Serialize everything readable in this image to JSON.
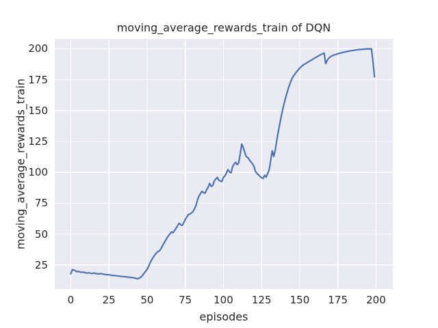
{
  "chart_data": {
    "type": "line",
    "title": "moving_average_rewards_train of DQN",
    "xlabel": "episodes",
    "ylabel": "moving_average_rewards_train",
    "x_ticks": [
      0,
      25,
      50,
      75,
      100,
      125,
      150,
      175,
      200
    ],
    "y_ticks": [
      25,
      50,
      75,
      100,
      125,
      150,
      175,
      200
    ],
    "xlim": [
      -10.5,
      211
    ],
    "ylim": [
      5.5,
      208
    ],
    "grid": true,
    "legend": false,
    "colors": {
      "line": "#4C72B0",
      "plot_bg": "#EAEAF2",
      "grid": "#FFFFFF",
      "text": "#262626",
      "figure_bg": "#FFFFFF"
    },
    "series": [
      {
        "name": "moving_average_rewards_train",
        "x_start": 0,
        "x_step": 1,
        "values": [
          17.9,
          21.2,
          20.9,
          20.2,
          19.6,
          19.8,
          19.4,
          19.0,
          19.2,
          18.9,
          18.6,
          18.4,
          18.7,
          18.3,
          18.0,
          18.5,
          18.2,
          17.9,
          17.7,
          17.9,
          18.0,
          17.6,
          17.4,
          17.2,
          17.1,
          17.0,
          16.8,
          16.7,
          16.5,
          16.4,
          16.2,
          16.1,
          15.9,
          15.8,
          15.6,
          15.5,
          15.4,
          15.2,
          15.1,
          14.9,
          14.8,
          14.6,
          14.4,
          14.1,
          13.8,
          14.4,
          15.3,
          16.5,
          18.3,
          19.8,
          21.5,
          24.0,
          26.8,
          29.0,
          31.2,
          33.0,
          34.5,
          35.8,
          36.4,
          38.0,
          40.2,
          42.5,
          44.6,
          46.8,
          48.7,
          50.1,
          51.8,
          51.0,
          52.9,
          54.8,
          56.8,
          58.8,
          57.6,
          57.0,
          59.2,
          61.8,
          63.8,
          65.7,
          66.3,
          66.9,
          68.2,
          70.3,
          73.0,
          77.5,
          80.8,
          83.0,
          84.6,
          83.6,
          83.1,
          85.9,
          88.0,
          91.1,
          88.6,
          89.2,
          93.0,
          94.6,
          95.9,
          93.6,
          93.0,
          92.6,
          95.8,
          97.1,
          99.5,
          102.2,
          100.3,
          99.6,
          104.4,
          106.8,
          108.1,
          106.2,
          107.6,
          114.8,
          122.9,
          120.2,
          116.1,
          112.6,
          112.0,
          110.1,
          108.6,
          107.0,
          104.9,
          100.6,
          99.1,
          98.0,
          96.6,
          95.6,
          95.1,
          97.6,
          96.1,
          99.0,
          102.1,
          109.8,
          117.4,
          112.9,
          118.3,
          126.1,
          133.2,
          139.8,
          146.0,
          151.7,
          156.9,
          161.6,
          165.8,
          169.6,
          173.1,
          176.1,
          178.1,
          179.9,
          181.5,
          183.0,
          184.4,
          185.6,
          186.6,
          187.4,
          188.2,
          188.9,
          189.7,
          190.4,
          191.2,
          191.9,
          192.7,
          193.4,
          194.1,
          194.8,
          195.4,
          196.0,
          196.6,
          188.1,
          190.6,
          192.4,
          193.5,
          194.2,
          194.8,
          195.2,
          195.6,
          196.0,
          196.4,
          196.7,
          197.0,
          197.3,
          197.6,
          197.9,
          198.1,
          198.3,
          198.5,
          198.7,
          198.9,
          199.1,
          199.3,
          199.4,
          199.5,
          199.6,
          199.7,
          199.8,
          199.9,
          199.9,
          200.0,
          199.9,
          189.5,
          177.3
        ]
      }
    ]
  }
}
